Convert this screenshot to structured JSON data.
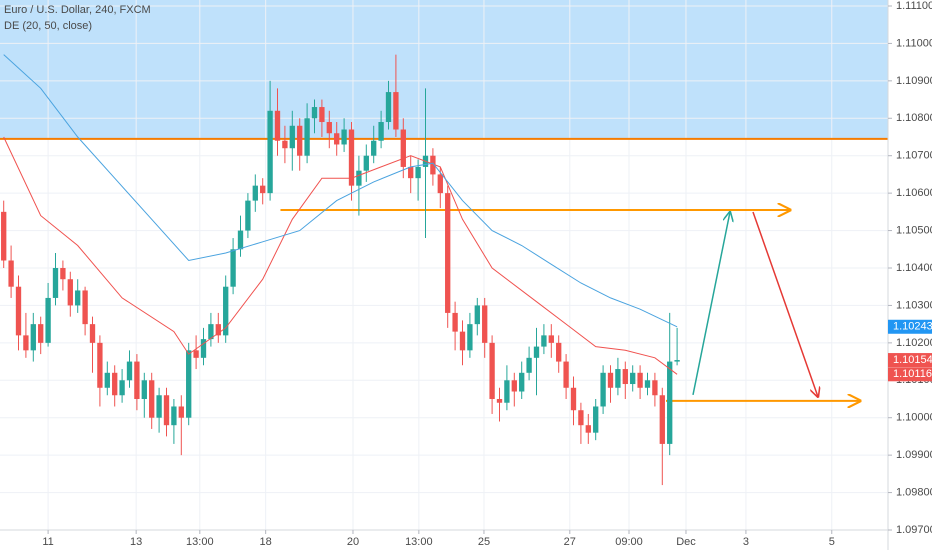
{
  "chart_data": {
    "type": "candlestick",
    "title": "Euro / U.S. Dollar, 240, FXCM",
    "subtitle": "DE (20, 50, close)",
    "up_color": "#26a69a",
    "down_color": "#ef5350",
    "xlim": [
      -0.5,
      119.5
    ],
    "ylim": [
      1.097,
      1.11116
    ],
    "yticks": [
      {
        "value": 1.097,
        "label": "1.09700"
      },
      {
        "value": 1.098,
        "label": "1.09800"
      },
      {
        "value": 1.099,
        "label": "1.09900"
      },
      {
        "value": 1.1,
        "label": "1.10000"
      },
      {
        "value": 1.101,
        "label": "1.10100"
      },
      {
        "value": 1.102,
        "label": "1.10200"
      },
      {
        "value": 1.103,
        "label": "1.10300"
      },
      {
        "value": 1.104,
        "label": "1.10400"
      },
      {
        "value": 1.105,
        "label": "1.10500"
      },
      {
        "value": 1.106,
        "label": "1.10600"
      },
      {
        "value": 1.107,
        "label": "1.10700"
      },
      {
        "value": 1.108,
        "label": "1.10800"
      },
      {
        "value": 1.109,
        "label": "1.10900"
      },
      {
        "value": 1.11,
        "label": "1.11000"
      },
      {
        "value": 1.111,
        "label": "1.11100"
      }
    ],
    "xticks": [
      {
        "value": 6,
        "label": "11"
      },
      {
        "value": 17.9,
        "label": "13"
      },
      {
        "value": 26.5,
        "label": "13:00"
      },
      {
        "value": 35.4,
        "label": "18"
      },
      {
        "value": 47.2,
        "label": "20"
      },
      {
        "value": 56.1,
        "label": "13:00"
      },
      {
        "value": 64.9,
        "label": "25"
      },
      {
        "value": 76.5,
        "label": "27"
      },
      {
        "value": 84.5,
        "label": "09:00"
      },
      {
        "value": 92.2,
        "label": "Dec"
      },
      {
        "value": 100.3,
        "label": "3"
      },
      {
        "value": 111.9,
        "label": "5"
      }
    ],
    "grid": true,
    "ohlc": [
      [
        1.1055,
        1.1058,
        1.104,
        1.1042
      ],
      [
        1.1042,
        1.1046,
        1.1032,
        1.1035
      ],
      [
        1.1035,
        1.1038,
        1.1018,
        1.1022
      ],
      [
        1.1022,
        1.1028,
        1.1016,
        1.1018
      ],
      [
        1.1018,
        1.1028,
        1.1015,
        1.1025
      ],
      [
        1.1025,
        1.1027,
        1.1017,
        1.102
      ],
      [
        1.102,
        1.1036,
        1.1019,
        1.1032
      ],
      [
        1.1032,
        1.1044,
        1.103,
        1.104
      ],
      [
        1.104,
        1.1042,
        1.1034,
        1.1037
      ],
      [
        1.1037,
        1.1039,
        1.1027,
        1.103
      ],
      [
        1.103,
        1.1037,
        1.1028,
        1.1034
      ],
      [
        1.1034,
        1.1035,
        1.1022,
        1.1025
      ],
      [
        1.1025,
        1.1027,
        1.1012,
        1.102
      ],
      [
        1.102,
        1.1022,
        1.1003,
        1.1008
      ],
      [
        1.1008,
        1.1015,
        1.1006,
        1.1012
      ],
      [
        1.1012,
        1.1014,
        1.1003,
        1.1006
      ],
      [
        1.1006,
        1.1013,
        1.1004,
        1.101
      ],
      [
        1.101,
        1.1018,
        1.1008,
        1.1015
      ],
      [
        1.1015,
        1.1017,
        1.1002,
        1.1005
      ],
      [
        1.1005,
        1.1012,
        1.1,
        1.101
      ],
      [
        1.101,
        1.1012,
        1.0997,
        1.1
      ],
      [
        1.1,
        1.1008,
        1.0996,
        1.1006
      ],
      [
        1.1006,
        1.1008,
        1.0995,
        1.0998
      ],
      [
        1.0998,
        1.1005,
        1.0993,
        1.1003
      ],
      [
        1.1003,
        1.1006,
        1.099,
        1.1
      ],
      [
        1.1,
        1.102,
        1.0998,
        1.1018
      ],
      [
        1.1018,
        1.1022,
        1.1013,
        1.1016
      ],
      [
        1.1016,
        1.1024,
        1.1014,
        1.1021
      ],
      [
        1.1021,
        1.1028,
        1.1019,
        1.1025
      ],
      [
        1.1025,
        1.1028,
        1.102,
        1.1022
      ],
      [
        1.1022,
        1.1038,
        1.102,
        1.1035
      ],
      [
        1.1035,
        1.1048,
        1.1033,
        1.1045
      ],
      [
        1.1045,
        1.1054,
        1.1043,
        1.105
      ],
      [
        1.105,
        1.106,
        1.1048,
        1.1058
      ],
      [
        1.1058,
        1.1065,
        1.1055,
        1.1062
      ],
      [
        1.1062,
        1.1064,
        1.1057,
        1.106
      ],
      [
        1.106,
        1.109,
        1.1058,
        1.1082
      ],
      [
        1.1082,
        1.1088,
        1.107,
        1.1074
      ],
      [
        1.1074,
        1.1078,
        1.1068,
        1.1072
      ],
      [
        1.1072,
        1.1082,
        1.1066,
        1.1078
      ],
      [
        1.1078,
        1.108,
        1.1066,
        1.107
      ],
      [
        1.107,
        1.1084,
        1.1068,
        1.108
      ],
      [
        1.108,
        1.1085,
        1.1076,
        1.1083
      ],
      [
        1.1083,
        1.1085,
        1.1075,
        1.1079
      ],
      [
        1.1079,
        1.1082,
        1.1072,
        1.1076
      ],
      [
        1.1076,
        1.1079,
        1.107,
        1.1073
      ],
      [
        1.1073,
        1.108,
        1.1071,
        1.1077
      ],
      [
        1.1077,
        1.1079,
        1.1058,
        1.1062
      ],
      [
        1.1062,
        1.107,
        1.1054,
        1.1066
      ],
      [
        1.1066,
        1.1073,
        1.1063,
        1.107
      ],
      [
        1.107,
        1.1078,
        1.1068,
        1.1074
      ],
      [
        1.1074,
        1.1082,
        1.1072,
        1.1079
      ],
      [
        1.1079,
        1.109,
        1.1077,
        1.1087
      ],
      [
        1.1087,
        1.1097,
        1.1075,
        1.1077
      ],
      [
        1.1077,
        1.108,
        1.1064,
        1.1067
      ],
      [
        1.1067,
        1.107,
        1.106,
        1.1064
      ],
      [
        1.1064,
        1.1069,
        1.1058,
        1.1067
      ],
      [
        1.1067,
        1.1088,
        1.1048,
        1.107
      ],
      [
        1.107,
        1.1072,
        1.1062,
        1.1065
      ],
      [
        1.1065,
        1.1067,
        1.1056,
        1.106
      ],
      [
        1.106,
        1.1062,
        1.1024,
        1.1028
      ],
      [
        1.1028,
        1.1031,
        1.1018,
        1.1023
      ],
      [
        1.1023,
        1.1026,
        1.1014,
        1.1018
      ],
      [
        1.1018,
        1.1028,
        1.1016,
        1.1025
      ],
      [
        1.1025,
        1.1032,
        1.1022,
        1.103
      ],
      [
        1.103,
        1.1032,
        1.1016,
        1.102
      ],
      [
        1.102,
        1.1022,
        1.1001,
        1.1005
      ],
      [
        1.1005,
        1.1008,
        1.0999,
        1.1004
      ],
      [
        1.1004,
        1.1014,
        1.1002,
        1.101
      ],
      [
        1.101,
        1.1012,
        1.1003,
        1.1007
      ],
      [
        1.1007,
        1.1015,
        1.1005,
        1.1012
      ],
      [
        1.1012,
        1.1019,
        1.101,
        1.1016
      ],
      [
        1.1016,
        1.1024,
        1.1006,
        1.1019
      ],
      [
        1.1019,
        1.1025,
        1.1017,
        1.1022
      ],
      [
        1.1022,
        1.1025,
        1.1016,
        1.102
      ],
      [
        1.102,
        1.1022,
        1.1012,
        1.1015
      ],
      [
        1.1015,
        1.1017,
        1.1005,
        1.1008
      ],
      [
        1.1008,
        1.1011,
        1.0998,
        1.1002
      ],
      [
        1.1002,
        1.1004,
        1.0993,
        1.0998
      ],
      [
        1.0998,
        1.1001,
        1.0993,
        1.0996
      ],
      [
        1.0996,
        1.1005,
        1.0994,
        1.1003
      ],
      [
        1.1003,
        1.1014,
        1.1001,
        1.1012
      ],
      [
        1.1012,
        1.1014,
        1.1004,
        1.1008
      ],
      [
        1.1008,
        1.1016,
        1.1006,
        1.1013
      ],
      [
        1.1013,
        1.1015,
        1.1005,
        1.1009
      ],
      [
        1.1009,
        1.1014,
        1.1007,
        1.1012
      ],
      [
        1.1012,
        1.1014,
        1.1005,
        1.1008
      ],
      [
        1.1008,
        1.1012,
        1.1006,
        1.101
      ],
      [
        1.101,
        1.1012,
        1.1003,
        1.1006
      ],
      [
        1.1006,
        1.1008,
        1.0982,
        1.0993
      ],
      [
        1.0993,
        1.1028,
        1.099,
        1.1015
      ],
      [
        1.1015,
        1.1024,
        1.1014,
        1.10154
      ]
    ],
    "lines": [
      {
        "color": "#f0524f",
        "x": [
          0,
          5,
          10,
          16,
          23,
          25,
          30,
          35,
          39,
          43,
          47,
          51,
          55,
          59,
          62,
          66,
          72,
          76,
          80,
          84,
          88,
          91
        ],
        "values": [
          1.1075,
          1.1054,
          1.1046,
          1.1032,
          1.1023,
          1.1017,
          1.1024,
          1.1037,
          1.1053,
          1.1064,
          1.1064,
          1.1067,
          1.107,
          1.1067,
          1.1053,
          1.104,
          1.1031,
          1.1025,
          1.1019,
          1.1018,
          1.1016,
          1.10116
        ]
      },
      {
        "color": "#4aa3df",
        "x": [
          0,
          5,
          10,
          15,
          20,
          25,
          30,
          35,
          40,
          45,
          50,
          55,
          58,
          62,
          66,
          70,
          74,
          78,
          82,
          86,
          91
        ],
        "values": [
          1.1097,
          1.1088,
          1.1075,
          1.1064,
          1.1053,
          1.1042,
          1.1044,
          1.1047,
          1.105,
          1.1058,
          1.1063,
          1.1067,
          1.1068,
          1.1058,
          1.105,
          1.1046,
          1.1041,
          1.1036,
          1.1032,
          1.1029,
          1.10243
        ]
      }
    ],
    "levels": [
      {
        "value": 1.10745,
        "color": "#f57c00"
      },
      {
        "value": 1.10555,
        "color": "#ff9800"
      },
      {
        "value": 1.10045,
        "color": "#ff9800"
      }
    ],
    "price_labels": [
      {
        "value": 1.10243,
        "color": "#2196f3"
      },
      {
        "value": 1.10154,
        "color": "#ef5350"
      },
      {
        "value": 1.10116,
        "color": "#ef5350"
      }
    ]
  }
}
